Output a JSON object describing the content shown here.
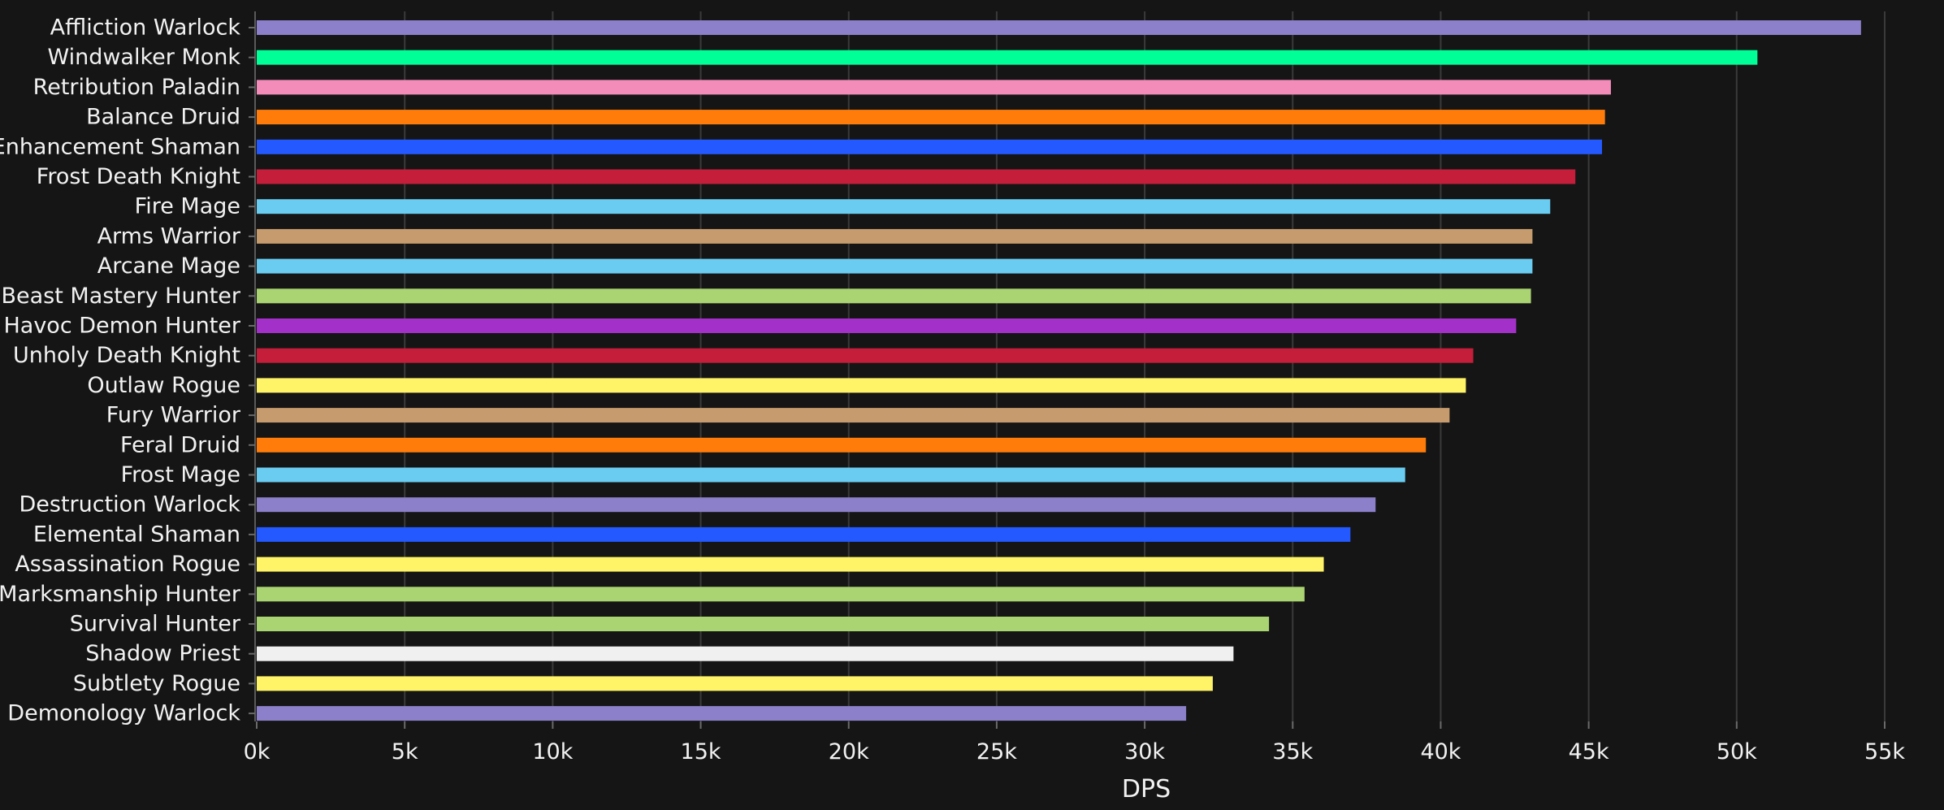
{
  "chart_data": {
    "type": "bar",
    "orientation": "horizontal",
    "xlabel": "DPS",
    "ylabel": "",
    "xlim": [
      0,
      55000
    ],
    "grid": true,
    "x_ticks": [
      {
        "value": 0,
        "label": "0k"
      },
      {
        "value": 5000,
        "label": "5k"
      },
      {
        "value": 10000,
        "label": "10k"
      },
      {
        "value": 15000,
        "label": "15k"
      },
      {
        "value": 20000,
        "label": "20k"
      },
      {
        "value": 25000,
        "label": "25k"
      },
      {
        "value": 30000,
        "label": "30k"
      },
      {
        "value": 35000,
        "label": "35k"
      },
      {
        "value": 40000,
        "label": "40k"
      },
      {
        "value": 45000,
        "label": "45k"
      },
      {
        "value": 50000,
        "label": "50k"
      },
      {
        "value": 55000,
        "label": "55k"
      }
    ],
    "categories": [
      "Affliction Warlock",
      "Windwalker Monk",
      "Retribution Paladin",
      "Balance Druid",
      "Enhancement Shaman",
      "Frost Death Knight",
      "Fire Mage",
      "Arms Warrior",
      "Arcane Mage",
      "Beast Mastery Hunter",
      "Havoc Demon Hunter",
      "Unholy Death Knight",
      "Outlaw Rogue",
      "Fury Warrior",
      "Feral Druid",
      "Frost Mage",
      "Destruction Warlock",
      "Elemental Shaman",
      "Assassination Rogue",
      "Marksmanship Hunter",
      "Survival Hunter",
      "Shadow Priest",
      "Subtlety Rogue",
      "Demonology Warlock"
    ],
    "values": [
      54200,
      50700,
      45750,
      45550,
      45450,
      44550,
      43700,
      43100,
      43100,
      43050,
      42550,
      41100,
      40850,
      40300,
      39500,
      38800,
      37800,
      36950,
      36050,
      35400,
      34200,
      33000,
      32300,
      31400
    ],
    "colors": [
      "#8b80c9",
      "#00ff96",
      "#f48cba",
      "#ff7c0a",
      "#2459ff",
      "#c41e3a",
      "#69ccf0",
      "#c69b6d",
      "#69ccf0",
      "#aad372",
      "#a330c9",
      "#c41e3a",
      "#fff468",
      "#c69b6d",
      "#ff7c0a",
      "#69ccf0",
      "#8b80c9",
      "#2459ff",
      "#fff468",
      "#aad372",
      "#aad372",
      "#f0f0f0",
      "#fff468",
      "#8b80c9"
    ]
  }
}
